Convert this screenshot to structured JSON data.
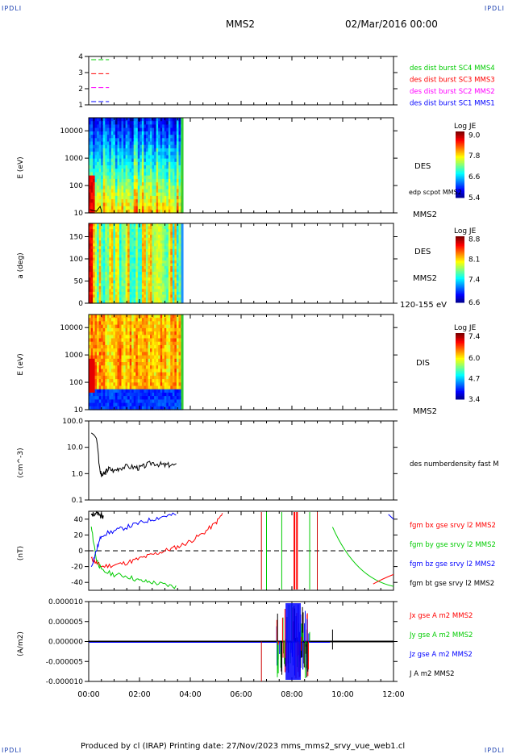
{
  "header": {
    "corner_label": "IPDLI",
    "spacecraft": "MMS2",
    "datetime": "02/Mar/2016 00:00"
  },
  "footer": {
    "text": "Produced by cl (IRAP)   Printing date: 27/Nov/2023   mms_mms2_srvy_vue_web1.cl"
  },
  "colors": {
    "mms1": "#0000ff",
    "mms2": "#ff00ff",
    "mms3": "#ff0000",
    "mms4": "#00cc00",
    "black": "#000000"
  },
  "chart_data": [
    {
      "id": "coverage",
      "type": "line",
      "x_ticks": [
        "00:00",
        "02:00",
        "04:00",
        "06:00",
        "08:00",
        "10:00",
        "12:00"
      ],
      "ylim": [
        1,
        4
      ],
      "y_ticks": [
        "1",
        "2",
        "3",
        "4"
      ],
      "series": [
        {
          "name": "des dist burst SC1 MMS1",
          "color": "#0000ff",
          "y": 1
        },
        {
          "name": "des dist burst SC2 MMS2",
          "color": "#ff00ff",
          "y": 2
        },
        {
          "name": "des dist burst SC3 MMS3",
          "color": "#ff0000",
          "y": 3
        },
        {
          "name": "des dist burst SC4 MMS4",
          "color": "#00cc00",
          "y": 4
        }
      ],
      "x_range_hours": [
        0.1,
        0.8
      ]
    },
    {
      "id": "des-energy",
      "type": "heatmap",
      "ylabel": "E (eV)",
      "scale": "log",
      "ylim": [
        10,
        30000
      ],
      "y_ticks": [
        "10",
        "100",
        "1000",
        "10000"
      ],
      "labels": [
        "DES",
        "edp scpot MMS2",
        "MMS2"
      ],
      "colorbar": {
        "title": "Log JE",
        "ticks": [
          "9.0",
          "7.8",
          "6.6",
          "5.4"
        ],
        "range": [
          5.4,
          9.2
        ]
      },
      "data_hours": [
        0,
        3.7
      ]
    },
    {
      "id": "des-pitch",
      "type": "heatmap",
      "ylabel": "a (deg)",
      "ylim": [
        0,
        180
      ],
      "y_ticks": [
        "0",
        "50",
        "100",
        "150"
      ],
      "labels": [
        "DES",
        "MMS2",
        "120-155 eV"
      ],
      "colorbar": {
        "title": "Log JE",
        "ticks": [
          "8.8",
          "8.1",
          "7.4",
          "6.6"
        ],
        "range": [
          6.6,
          8.9
        ]
      },
      "data_hours": [
        0,
        3.7
      ]
    },
    {
      "id": "dis-energy",
      "type": "heatmap",
      "ylabel": "E (eV)",
      "scale": "log",
      "ylim": [
        10,
        30000
      ],
      "y_ticks": [
        "10",
        "100",
        "1000",
        "10000"
      ],
      "labels": [
        "DIS",
        "MMS2"
      ],
      "colorbar": {
        "title": "Log JE",
        "ticks": [
          "7.4",
          "6.0",
          "4.7",
          "3.4"
        ],
        "range": [
          3.4,
          7.6
        ]
      },
      "data_hours": [
        0,
        3.7
      ]
    },
    {
      "id": "density",
      "type": "line",
      "ylabel": "(cm^-3)",
      "scale": "log",
      "ylim": [
        0.1,
        100
      ],
      "y_ticks": [
        "0.1",
        "1.0",
        "10.0",
        "100.0"
      ],
      "series": [
        {
          "name": "des numberdensity fast M",
          "color": "#000000",
          "x": [
            0.1,
            0.2,
            0.3,
            0.35,
            0.4,
            0.45,
            0.5,
            0.6,
            0.7,
            0.8,
            1.0,
            1.2,
            1.5,
            1.8,
            2.0,
            2.2,
            2.5,
            2.8,
            3.0,
            3.2,
            3.5
          ],
          "y": [
            35,
            30,
            22,
            10,
            2.5,
            1.2,
            0.8,
            0.9,
            1.2,
            1.5,
            1.2,
            1.6,
            1.8,
            1.7,
            1.6,
            1.9,
            2.5,
            2.2,
            2.0,
            2.1,
            1.9
          ]
        }
      ]
    },
    {
      "id": "magnetic-field",
      "type": "line",
      "ylabel": "(nT)",
      "ylim": [
        -50,
        50
      ],
      "y_ticks": [
        "-40",
        "-20",
        "0",
        "20",
        "40"
      ],
      "series": [
        {
          "name": "fgm bx gse srvy l2 MMS2",
          "color": "#ff0000",
          "x": [
            0.1,
            0.3,
            0.5,
            1.0,
            1.5,
            2.0,
            2.5,
            3.0,
            3.5,
            4.0,
            4.5,
            5.0,
            5.3
          ],
          "y": [
            -10,
            -15,
            -20,
            -18,
            -15,
            -10,
            -5,
            0,
            5,
            12,
            22,
            35,
            48
          ]
        },
        {
          "name": "fgm by gse srvy l2 MMS2",
          "color": "#00cc00",
          "x": [
            0.1,
            0.3,
            0.5,
            1.0,
            1.5,
            2.0,
            2.5,
            3.0,
            3.5
          ],
          "y": [
            30,
            -10,
            -25,
            -30,
            -32,
            -38,
            -40,
            -43,
            -46
          ]
        },
        {
          "name": "fgm bz gse srvy l2 MMS2",
          "color": "#0000ff",
          "x": [
            0.1,
            0.3,
            0.5,
            1.0,
            1.5,
            2.0,
            2.5,
            3.0,
            3.5
          ],
          "y": [
            -20,
            0,
            20,
            25,
            30,
            35,
            40,
            44,
            46
          ]
        },
        {
          "name": "fgm bt gse srvy l2 MMS2",
          "color": "#000000",
          "x": [
            0.1,
            0.2,
            0.3,
            0.4,
            0.5,
            0.6
          ],
          "y": [
            45,
            47,
            48,
            46,
            44,
            43
          ]
        }
      ]
    },
    {
      "id": "current-density",
      "type": "line",
      "ylabel": "(A/m2)",
      "ylim": [
        -1e-05,
        1e-05
      ],
      "y_ticks": [
        "-0.000010",
        "-0.000005",
        "0.000000",
        "0.000005",
        "0.000010"
      ],
      "series": [
        {
          "name": "Jx gse A m2 MMS2",
          "color": "#ff0000"
        },
        {
          "name": "Jy gse A m2 MMS2",
          "color": "#00cc00"
        },
        {
          "name": "Jz gse A m2 MMS2",
          "color": "#0000ff"
        },
        {
          "name": "J A m2 MMS2",
          "color": "#000000"
        }
      ]
    }
  ]
}
